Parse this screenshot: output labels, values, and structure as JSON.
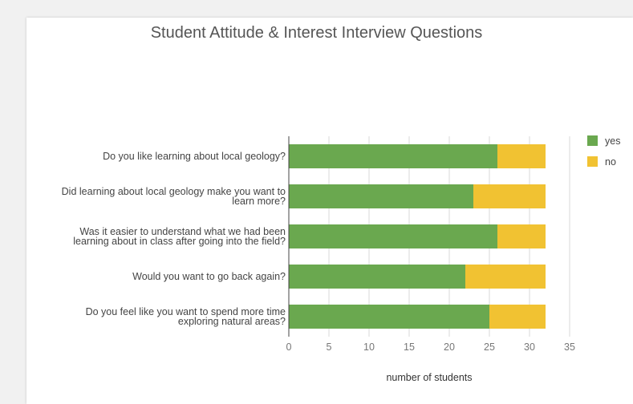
{
  "chart_data": {
    "type": "bar",
    "orientation": "horizontal",
    "stacked": true,
    "title": "Student Attitude & Interest Interview Questions",
    "xlabel": "number of students",
    "ylabel": "",
    "xlim": [
      0,
      35
    ],
    "xticks": [
      0,
      5,
      10,
      15,
      20,
      25,
      30,
      35
    ],
    "grid": true,
    "legend_position": "right",
    "categories": [
      [
        "Do you like learning about local geology?"
      ],
      [
        "Did learning about local geology make you want to",
        "learn more?"
      ],
      [
        "Was it easier to understand what we had been",
        "learning about in class after going into the field?"
      ],
      [
        "Would you want to go back again?"
      ],
      [
        "Do you feel like you want to spend more time",
        "exploring natural areas?"
      ]
    ],
    "series": [
      {
        "name": "yes",
        "color": "#6aa84f",
        "values": [
          26,
          23,
          26,
          22,
          25
        ]
      },
      {
        "name": "no",
        "color": "#f1c232",
        "values": [
          6,
          9,
          6,
          10,
          7
        ]
      }
    ]
  }
}
